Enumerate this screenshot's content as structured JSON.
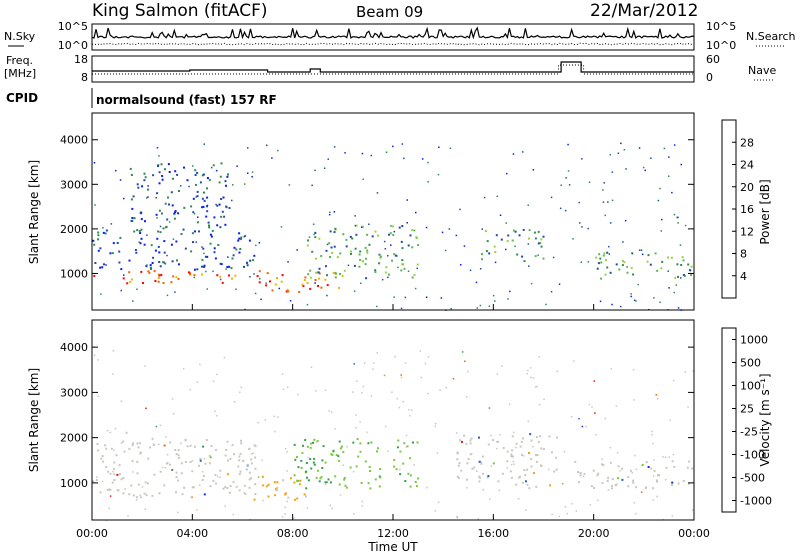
{
  "header": {
    "station": "King Salmon (fitACF)",
    "beam": "Beam 09",
    "date": "22/Mar/2012"
  },
  "noise_panel": {
    "left_label": "N.Sky",
    "right_label": "N.Search",
    "left_ticks": [
      "10^5",
      "10^0"
    ],
    "right_ticks": [
      "10^5",
      "10^0"
    ]
  },
  "freq_panel": {
    "left_label_line1": "Freq.",
    "left_label_line2": "[MHz]",
    "right_label": "Nave",
    "left_ticks": [
      "18",
      "8"
    ],
    "right_ticks": [
      "60",
      "0"
    ]
  },
  "cpid": {
    "label": "CPID",
    "program": "normalsound (fast) 157 RF"
  },
  "colors": {
    "power_scale": [
      "#0a1ef0",
      "#1e4ea0",
      "#2f8a50",
      "#5ab45a",
      "#9bd23c",
      "#f0b400",
      "#f06400",
      "#ff0000"
    ],
    "velocity_scale": [
      "#1432c8",
      "#1e64b4",
      "#32a050",
      "#78c83c",
      "#c8c8c0",
      "#f0a014",
      "#f06414",
      "#e61414"
    ]
  },
  "chart_data": [
    {
      "type": "heatmap",
      "name_shown": "",
      "xlabel": "",
      "ylabel": "Slant Range [km]",
      "y_ticks": [
        "1000",
        "2000",
        "3000",
        "4000"
      ],
      "ylim": [
        180,
        4600
      ],
      "xlim_hours": [
        0,
        24
      ],
      "colorbar_label": "Power [dB]",
      "colorbar_ticks": [
        "4",
        "8",
        "12",
        "16",
        "20",
        "24",
        "28"
      ],
      "colorbar_range": [
        0,
        30
      ],
      "features": [
        {
          "t0": 0.0,
          "t1": 6.0,
          "r0": 800,
          "r1": 1100,
          "level": "high"
        },
        {
          "t0": 0.0,
          "t1": 6.5,
          "r0": 1100,
          "r1": 2000,
          "level": "low"
        },
        {
          "t0": 1.5,
          "t1": 5.5,
          "r0": 2000,
          "r1": 3500,
          "level": "low"
        },
        {
          "t0": 6.5,
          "t1": 10.0,
          "r0": 600,
          "r1": 1100,
          "level": "high"
        },
        {
          "t0": 8.5,
          "t1": 13.0,
          "r0": 900,
          "r1": 2100,
          "level": "mid"
        },
        {
          "t0": 15.5,
          "t1": 18.0,
          "r0": 1300,
          "r1": 2000,
          "level": "mid"
        },
        {
          "t0": 20.0,
          "t1": 24.0,
          "r0": 900,
          "r1": 1500,
          "level": "mid"
        }
      ]
    },
    {
      "type": "heatmap",
      "name_shown": "",
      "xlabel": "Time UT",
      "ylabel": "Slant Range [km]",
      "y_ticks": [
        "1000",
        "2000",
        "3000",
        "4000"
      ],
      "x_ticks": [
        "00:00",
        "04:00",
        "08:00",
        "12:00",
        "16:00",
        "20:00",
        "00:00"
      ],
      "ylim": [
        180,
        4600
      ],
      "xlim_hours": [
        0,
        24
      ],
      "colorbar_label": "Velocity [m s⁻¹]",
      "colorbar_ticks": [
        "1000",
        "500",
        "100",
        "25",
        "-25",
        "-100",
        "-500",
        "-1000"
      ],
      "colorbar_range": [
        -1000,
        1000
      ],
      "features": [
        {
          "t0": 0.0,
          "t1": 6.5,
          "r0": 700,
          "r1": 2000,
          "level": "ground"
        },
        {
          "t0": 6.0,
          "t1": 8.5,
          "r0": 600,
          "r1": 1200,
          "level": "toward"
        },
        {
          "t0": 8.0,
          "t1": 13.0,
          "r0": 900,
          "r1": 2000,
          "level": "away"
        },
        {
          "t0": 14.5,
          "t1": 18.5,
          "r0": 900,
          "r1": 2100,
          "level": "ground"
        },
        {
          "t0": 19.0,
          "t1": 24.0,
          "r0": 900,
          "r1": 1500,
          "level": "ground"
        }
      ]
    }
  ]
}
